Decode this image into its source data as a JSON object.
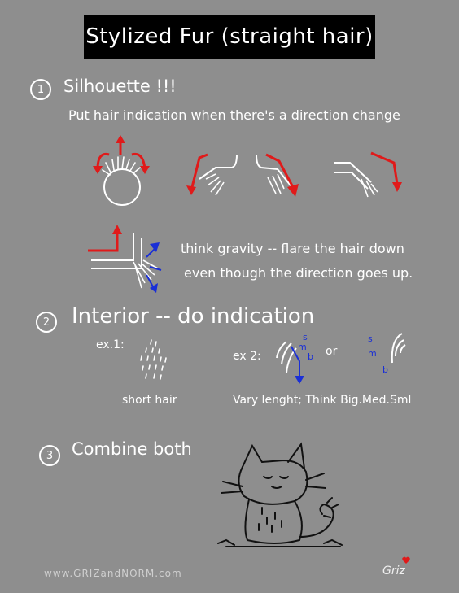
{
  "title": "Stylized Fur (straight hair)",
  "sections": [
    {
      "number": "1",
      "heading": "Silhouette !!!",
      "subheading": "Put hair indication when there's a direction change",
      "note_line1": "think gravity -- flare the hair down",
      "note_line2": "even though the direction goes up."
    },
    {
      "number": "2",
      "heading": "Interior -- do indication",
      "ex1_label": "ex.1:",
      "ex1_caption": "short hair",
      "ex2_label": "ex 2:",
      "ex2_or": "or",
      "ex2_caption": "Vary lenght; Think Big.Med.Sml",
      "size_s": "s",
      "size_m": "m",
      "size_b": "b"
    },
    {
      "number": "3",
      "heading": "Combine both"
    }
  ],
  "footer": {
    "url": "www.GRIZandNORM.com",
    "signature": "Griz"
  },
  "colors": {
    "background": "#8e8e8e",
    "title_box": "#000000",
    "arrow_red": "#e01a1a",
    "arrow_blue": "#1a2fd6",
    "stroke": "#ffffff",
    "heart": "#e01a1a"
  }
}
